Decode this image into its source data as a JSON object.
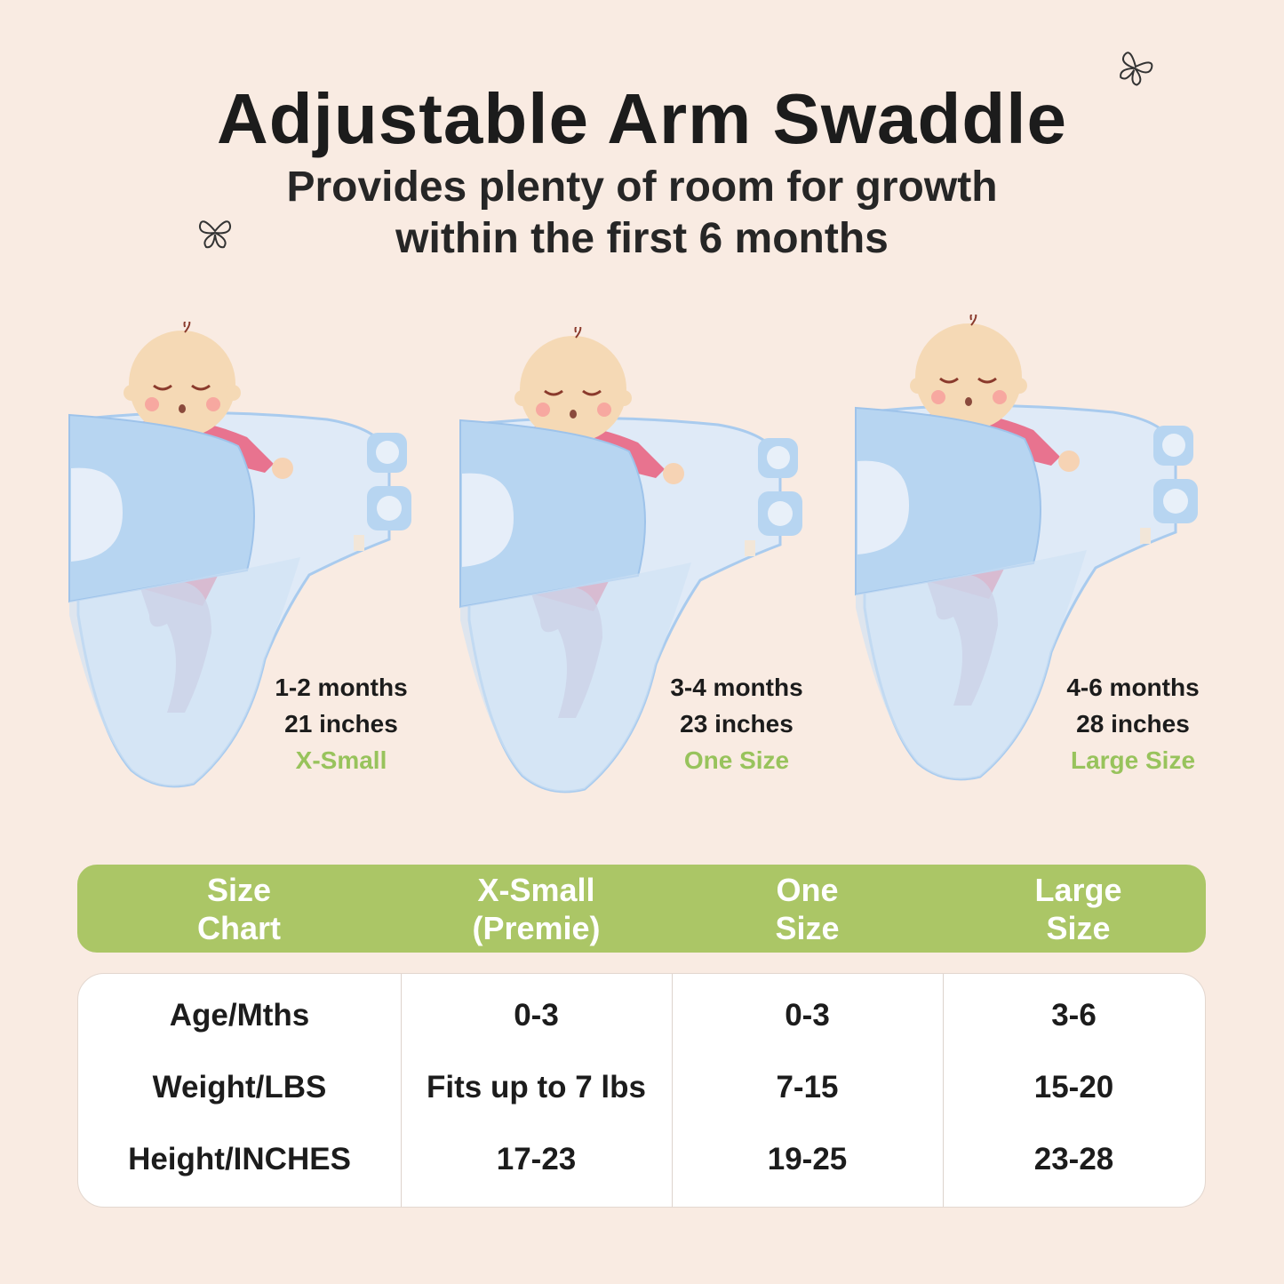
{
  "title": "Adjustable Arm Swaddle",
  "subtitle_line1": "Provides plenty of room for growth",
  "subtitle_line2": "within the first 6 months",
  "colors": {
    "background": "#f9ebe2",
    "accent_green": "#abc666",
    "size_label_green": "#98c35c",
    "swaddle_blue": "#b7d5f1",
    "swaddle_light": "#dde9f7",
    "onesie_pink": "#e8738f"
  },
  "icons": [
    "butterfly-icon",
    "butterfly-icon"
  ],
  "stages": [
    {
      "age": "1-2 months",
      "length": "21 inches",
      "size": "X-Small"
    },
    {
      "age": "3-4 months",
      "length": "23 inches",
      "size": "One Size"
    },
    {
      "age": "4-6 months",
      "length": "28 inches",
      "size": "Large Size"
    }
  ],
  "table": {
    "headers": [
      "Size\nChart",
      "X-Small\n(Premie)",
      "One\nSize",
      "Large\nSize"
    ],
    "rows": [
      {
        "label": "Age/Mths",
        "values": [
          "0-3",
          "0-3",
          "3-6"
        ]
      },
      {
        "label": "Weight/LBS",
        "values": [
          "Fits up to 7 lbs",
          "7-15",
          "15-20"
        ]
      },
      {
        "label": "Height/INCHES",
        "values": [
          "17-23",
          "19-25",
          "23-28"
        ]
      }
    ]
  }
}
